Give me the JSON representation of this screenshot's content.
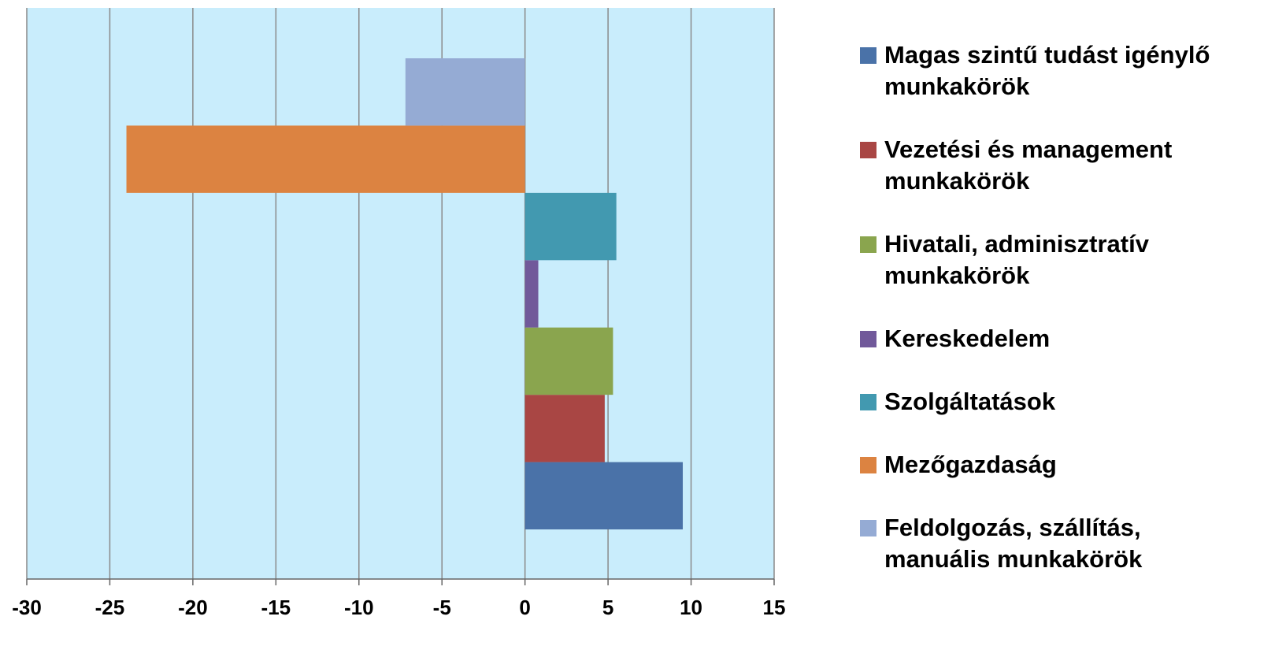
{
  "chart_data": {
    "type": "hbar",
    "series": [
      {
        "name": "Magas szintű tudást igénylő munkakörök",
        "color": "#4a72a8",
        "values": [
          9.5
        ]
      },
      {
        "name": "Vezetési és management munkakörök",
        "color": "#a94644",
        "values": [
          4.8
        ]
      },
      {
        "name": "Hivatali, adminisztratív munkakörök",
        "color": "#8aa54e",
        "values": [
          5.3
        ]
      },
      {
        "name": "Kereskedelem",
        "color": "#71599a",
        "values": [
          0.8
        ]
      },
      {
        "name": "Szolgáltatások",
        "color": "#4299b0",
        "values": [
          5.5
        ]
      },
      {
        "name": "Mezőgazdaság",
        "color": "#dc8341",
        "values": [
          -24
        ]
      },
      {
        "name": "Feldolgozás, szállítás, manuális munkakörök",
        "color": "#95abd4",
        "values": [
          -7.2
        ]
      }
    ],
    "xlim": [
      -30,
      15
    ],
    "xticks": [
      -30,
      -25,
      -20,
      -15,
      -10,
      -5,
      0,
      5,
      10,
      15
    ],
    "grid": true,
    "legend": "right"
  }
}
